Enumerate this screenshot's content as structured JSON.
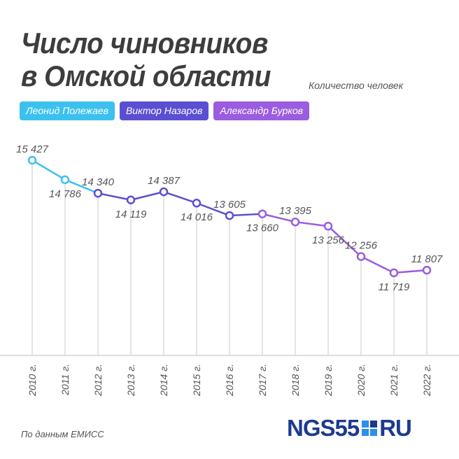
{
  "title": {
    "line1": "Число чиновников",
    "line2": "в Омской области"
  },
  "units": "Количество человек",
  "legend": [
    {
      "label": "Леонид Полежаев",
      "color": "#3cc1ee"
    },
    {
      "label": "Виктор Назаров",
      "color": "#5a4fd3"
    },
    {
      "label": "Александр Бурков",
      "color": "#9b5cdf"
    }
  ],
  "chart_data": {
    "type": "line",
    "x": [
      "2010 г.",
      "2011 г.",
      "2012 г.",
      "2013 г.",
      "2014 г.",
      "2015 г.",
      "2016 г.",
      "2017 г.",
      "2018 г.",
      "2019 г.",
      "2020 г.",
      "2021 г.",
      "2022 г."
    ],
    "y": [
      15427,
      14786,
      14340,
      14119,
      14387,
      14016,
      13605,
      13660,
      13395,
      13256,
      12256,
      11719,
      11807
    ],
    "value_labels": [
      "15 427",
      "14 786",
      "14 340",
      "14 119",
      "14 387",
      "14 016",
      "13 605",
      "13 660",
      "13 395",
      "13 256",
      "12 256",
      "11 719",
      "11 807"
    ],
    "segments": [
      {
        "name": "Леонид Полежаев",
        "from": "2010 г.",
        "to": "2012 г.",
        "color": "#3cc1ee"
      },
      {
        "name": "Виктор Назаров",
        "from": "2012 г.",
        "to": "2017 г.",
        "color": "#5a4fd3"
      },
      {
        "name": "Александр Бурков",
        "from": "2017 г.",
        "to": "2022 г.",
        "color": "#9b5cdf"
      }
    ],
    "grid": "vertical drop lines",
    "title": "Число чиновников в Омской области",
    "ylabel": "Количество человек"
  },
  "footer": {
    "source": "По данным ЕМИСС",
    "logo_left": "NGS55",
    "logo_right": "RU"
  }
}
